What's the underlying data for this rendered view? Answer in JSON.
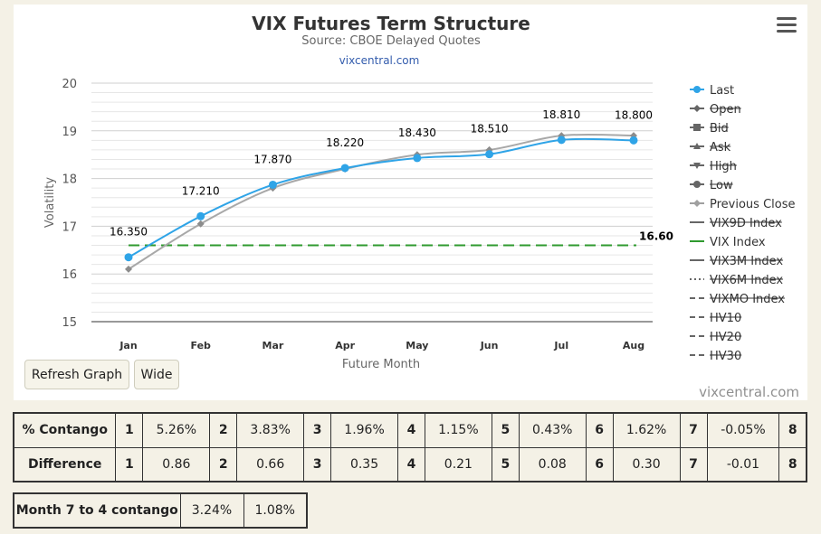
{
  "chart_data": {
    "type": "line",
    "title": "VIX Futures Term Structure",
    "subtitle": "Source: CBOE Delayed Quotes",
    "link": "vixcentral.com",
    "xlabel": "Future Month",
    "ylabel": "Volatility",
    "categories": [
      "Jan",
      "Feb",
      "Mar",
      "Apr",
      "May",
      "Jun",
      "Jul",
      "Aug"
    ],
    "ylim": [
      15,
      20
    ],
    "yticks": [
      15,
      16,
      17,
      18,
      19,
      20
    ],
    "grid": true,
    "legend_position": "right",
    "series": [
      {
        "name": "Last",
        "color": "#2fa4e7",
        "values": [
          16.35,
          17.21,
          17.87,
          18.22,
          18.43,
          18.51,
          18.81,
          18.8
        ],
        "labels": [
          "16.350",
          "17.210",
          "17.870",
          "18.220",
          "18.430",
          "18.510",
          "18.810",
          "18.800"
        ]
      },
      {
        "name": "Previous Close",
        "color": "#a8a8a8",
        "values": [
          16.1,
          17.05,
          17.8,
          18.2,
          18.5,
          18.6,
          18.9,
          18.9
        ]
      },
      {
        "name": "VIX Index",
        "color": "#2f9a2f",
        "value": 16.6,
        "label": "16.60"
      }
    ],
    "legend": [
      {
        "name": "Last",
        "symbol": "circle",
        "active": true
      },
      {
        "name": "Open",
        "symbol": "diamond",
        "active": false
      },
      {
        "name": "Bid",
        "symbol": "square",
        "active": false
      },
      {
        "name": "Ask",
        "symbol": "triangle",
        "active": false
      },
      {
        "name": "High",
        "symbol": "triangle-down",
        "active": false
      },
      {
        "name": "Low",
        "symbol": "circle",
        "active": false
      },
      {
        "name": "Previous Close",
        "symbol": "diamond",
        "active": true
      },
      {
        "name": "VIX9D Index",
        "symbol": "line",
        "active": false
      },
      {
        "name": "VIX Index",
        "symbol": "line",
        "active": true
      },
      {
        "name": "VIX3M Index",
        "symbol": "line",
        "active": false
      },
      {
        "name": "VIX6M Index",
        "symbol": "dotted",
        "active": false
      },
      {
        "name": "VIXMO Index",
        "symbol": "dashdot",
        "active": false
      },
      {
        "name": "HV10",
        "symbol": "dashdot",
        "active": false
      },
      {
        "name": "HV20",
        "symbol": "dashdot",
        "active": false
      },
      {
        "name": "HV30",
        "symbol": "dashdot",
        "active": false
      }
    ]
  },
  "buttons": {
    "refresh": "Refresh Graph",
    "wide": "Wide"
  },
  "menu_icon": "hamburger-icon",
  "credit": "vixcentral.com",
  "stats": {
    "contango_label": "% Contango",
    "difference_label": "Difference",
    "numbers": [
      "1",
      "2",
      "3",
      "4",
      "5",
      "6",
      "7",
      "8"
    ],
    "contango": [
      "5.26%",
      "3.83%",
      "1.96%",
      "1.15%",
      "0.43%",
      "1.62%",
      "-0.05%"
    ],
    "difference": [
      "0.86",
      "0.66",
      "0.35",
      "0.21",
      "0.08",
      "0.30",
      "-0.01"
    ]
  },
  "month_contango": {
    "label": "Month 7 to 4 contango",
    "values": [
      "3.24%",
      "1.08%"
    ]
  }
}
